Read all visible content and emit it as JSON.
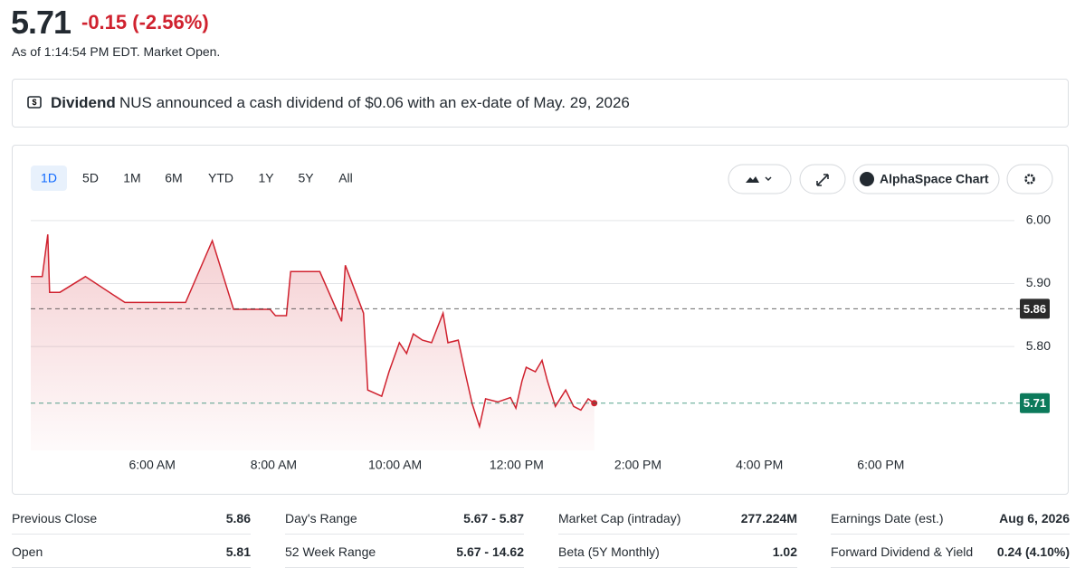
{
  "quote": {
    "price": "5.71",
    "change": "-0.15",
    "change_pct": "(-2.56%)",
    "as_of": "As of 1:14:54 PM EDT. Market Open."
  },
  "dividend": {
    "label": "Dividend",
    "text": "NUS announced a cash dividend of $0.06 with an ex-date of May. 29, 2026"
  },
  "toolbar": {
    "ranges": [
      "1D",
      "5D",
      "1M",
      "6M",
      "YTD",
      "1Y",
      "5Y",
      "All"
    ],
    "chart_button": "AlphaSpace Chart"
  },
  "chart_data": {
    "type": "line",
    "color": "#d0222f",
    "x": [
      4.0,
      4.19,
      4.28,
      4.31,
      4.48,
      4.9,
      5.55,
      6.55,
      6.99,
      7.34,
      7.94,
      8.03,
      8.21,
      8.28,
      8.76,
      9.12,
      9.18,
      9.48,
      9.55,
      9.78,
      9.9,
      10.07,
      10.19,
      10.3,
      10.45,
      10.6,
      10.79,
      10.87,
      11.04,
      11.15,
      11.27,
      11.39,
      11.49,
      11.69,
      11.9,
      11.99,
      12.09,
      12.16,
      12.31,
      12.42,
      12.51,
      12.64,
      12.81,
      12.94,
      13.06,
      13.18,
      13.28
    ],
    "values": [
      5.911,
      5.911,
      5.978,
      5.886,
      5.886,
      5.911,
      5.87,
      5.87,
      5.968,
      5.859,
      5.859,
      5.849,
      5.849,
      5.919,
      5.919,
      5.84,
      5.929,
      5.853,
      5.731,
      5.721,
      5.76,
      5.806,
      5.789,
      5.82,
      5.81,
      5.806,
      5.853,
      5.806,
      5.81,
      5.76,
      5.709,
      5.673,
      5.717,
      5.712,
      5.719,
      5.702,
      5.745,
      5.767,
      5.76,
      5.778,
      5.745,
      5.705,
      5.731,
      5.705,
      5.699,
      5.717,
      5.71
    ],
    "xlim": [
      4,
      20.2
    ],
    "xticks": [
      {
        "value": 6,
        "label": "6:00 AM"
      },
      {
        "value": 8,
        "label": "8:00 AM"
      },
      {
        "value": 10,
        "label": "10:00 AM"
      },
      {
        "value": 12,
        "label": "12:00 PM"
      },
      {
        "value": 14,
        "label": "2:00 PM"
      },
      {
        "value": 16,
        "label": "4:00 PM"
      },
      {
        "value": 18,
        "label": "6:00 PM"
      }
    ],
    "ylim": [
      5.635,
      6.04
    ],
    "yticks": [
      {
        "value": 6.0,
        "label": "6.00"
      },
      {
        "value": 5.9,
        "label": "5.90"
      },
      {
        "value": 5.8,
        "label": "5.80"
      }
    ],
    "reference_lines": [
      {
        "value": 5.86,
        "color": "#2b2b2b"
      },
      {
        "value": 5.71,
        "color": "#0c7a5b"
      }
    ]
  },
  "stats": [
    [
      [
        "Previous Close",
        "5.86"
      ],
      [
        "Day's Range",
        "5.67 - 5.87"
      ],
      [
        "Market Cap (intraday)",
        "277.224M"
      ],
      [
        "Earnings Date (est.)",
        "Aug 6, 2026"
      ]
    ],
    [
      [
        "Open",
        "5.81"
      ],
      [
        "52 Week Range",
        "5.67 - 14.62"
      ],
      [
        "Beta (5Y Monthly)",
        "1.02"
      ],
      [
        "Forward Dividend & Yield",
        "0.24 (4.10%)"
      ]
    ]
  ]
}
